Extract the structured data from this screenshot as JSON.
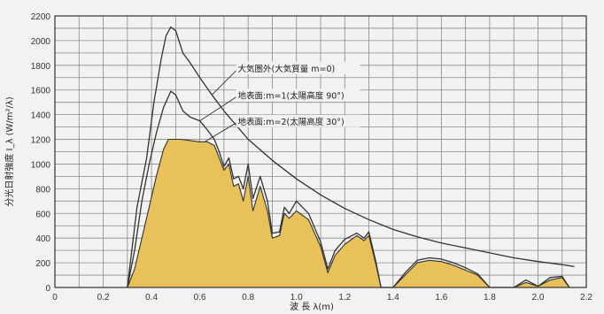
{
  "chart_data": {
    "type": "area",
    "xlabel": "波 長 λ(m)",
    "ylabel": "分光日射強度 I_λ (W/m²/λ)",
    "xlim": [
      0,
      2.2
    ],
    "ylim": [
      0,
      2200
    ],
    "x_ticks": [
      "0",
      "0.2",
      "0.4",
      "0.6",
      "0.8",
      "1.0",
      "1.2",
      "1.4",
      "1.6",
      "1.8",
      "2.0",
      "2.2"
    ],
    "y_ticks": [
      "0",
      "200",
      "400",
      "600",
      "800",
      "1000",
      "1200",
      "1400",
      "1600",
      "1800",
      "2000",
      "2200"
    ],
    "grid": true,
    "colors": {
      "fill": "#e8c15a",
      "line": "#333333",
      "background": "#f2f2f0"
    },
    "series": [
      {
        "name": "大気圏外(大気質量 m=0)",
        "x": [
          0.3,
          0.34,
          0.38,
          0.41,
          0.44,
          0.46,
          0.48,
          0.5,
          0.53,
          0.56,
          0.6,
          0.65,
          0.7,
          0.8,
          0.9,
          1.0,
          1.1,
          1.2,
          1.3,
          1.4,
          1.5,
          1.6,
          1.7,
          1.8,
          1.9,
          2.0,
          2.1,
          2.15
        ],
        "values": [
          0,
          650,
          1050,
          1500,
          1850,
          2040,
          2110,
          2080,
          1900,
          1820,
          1700,
          1560,
          1430,
          1200,
          1030,
          880,
          750,
          640,
          550,
          470,
          410,
          360,
          320,
          280,
          240,
          210,
          185,
          170
        ]
      },
      {
        "name": "地表面:m=1(太陽高度 90°)",
        "x": [
          0.3,
          0.33,
          0.36,
          0.39,
          0.42,
          0.45,
          0.48,
          0.5,
          0.53,
          0.56,
          0.6,
          0.63,
          0.66,
          0.68,
          0.7,
          0.72,
          0.74,
          0.76,
          0.78,
          0.8,
          0.82,
          0.85,
          0.88,
          0.9,
          0.93,
          0.95,
          0.97,
          1.0,
          1.05,
          1.1,
          1.13,
          1.16,
          1.2,
          1.25,
          1.28,
          1.3,
          1.33,
          1.35,
          1.4,
          1.45,
          1.5,
          1.55,
          1.6,
          1.65,
          1.7,
          1.75,
          1.8,
          1.85,
          1.9,
          1.95,
          2.0,
          2.05,
          2.1,
          2.13
        ],
        "values": [
          0,
          300,
          700,
          1000,
          1250,
          1460,
          1590,
          1560,
          1430,
          1380,
          1350,
          1280,
          1200,
          1100,
          980,
          1050,
          880,
          900,
          800,
          1000,
          720,
          900,
          700,
          440,
          450,
          650,
          600,
          700,
          600,
          370,
          150,
          300,
          390,
          440,
          400,
          450,
          200,
          0,
          0,
          120,
          220,
          240,
          230,
          200,
          160,
          110,
          0,
          0,
          0,
          60,
          10,
          80,
          90,
          0
        ]
      },
      {
        "name": "地表面:m=2(太陽高度 30°)",
        "x": [
          0.3,
          0.33,
          0.36,
          0.39,
          0.42,
          0.45,
          0.47,
          0.49,
          0.52,
          0.56,
          0.6,
          0.63,
          0.66,
          0.68,
          0.7,
          0.72,
          0.74,
          0.76,
          0.78,
          0.8,
          0.82,
          0.85,
          0.88,
          0.9,
          0.93,
          0.95,
          0.97,
          1.0,
          1.05,
          1.1,
          1.13,
          1.16,
          1.2,
          1.25,
          1.28,
          1.3,
          1.33,
          1.35,
          1.4,
          1.45,
          1.5,
          1.55,
          1.6,
          1.65,
          1.7,
          1.75,
          1.8,
          1.85,
          1.9,
          1.95,
          2.0,
          2.05,
          2.1,
          2.13
        ],
        "values": [
          0,
          150,
          400,
          650,
          900,
          1120,
          1200,
          1200,
          1200,
          1190,
          1180,
          1180,
          1150,
          1050,
          950,
          1000,
          820,
          840,
          700,
          900,
          620,
          820,
          620,
          400,
          420,
          600,
          560,
          620,
          550,
          330,
          120,
          260,
          350,
          420,
          380,
          420,
          180,
          0,
          0,
          100,
          200,
          220,
          210,
          180,
          140,
          100,
          0,
          0,
          0,
          40,
          10,
          60,
          80,
          0
        ]
      }
    ],
    "annotations": [
      {
        "text": "大気圏外(大気質量 m=0)",
        "x": 0.75,
        "y": 1750,
        "target_x": 0.65,
        "target_y": 1560
      },
      {
        "text": "地表面:m=1(太陽高度 90°)",
        "x": 0.75,
        "y": 1530,
        "target_x": 0.6,
        "target_y": 1350
      },
      {
        "text": "地表面:m=2(太陽高度 30°)",
        "x": 0.75,
        "y": 1320,
        "target_x": 0.62,
        "target_y": 1180
      }
    ]
  }
}
